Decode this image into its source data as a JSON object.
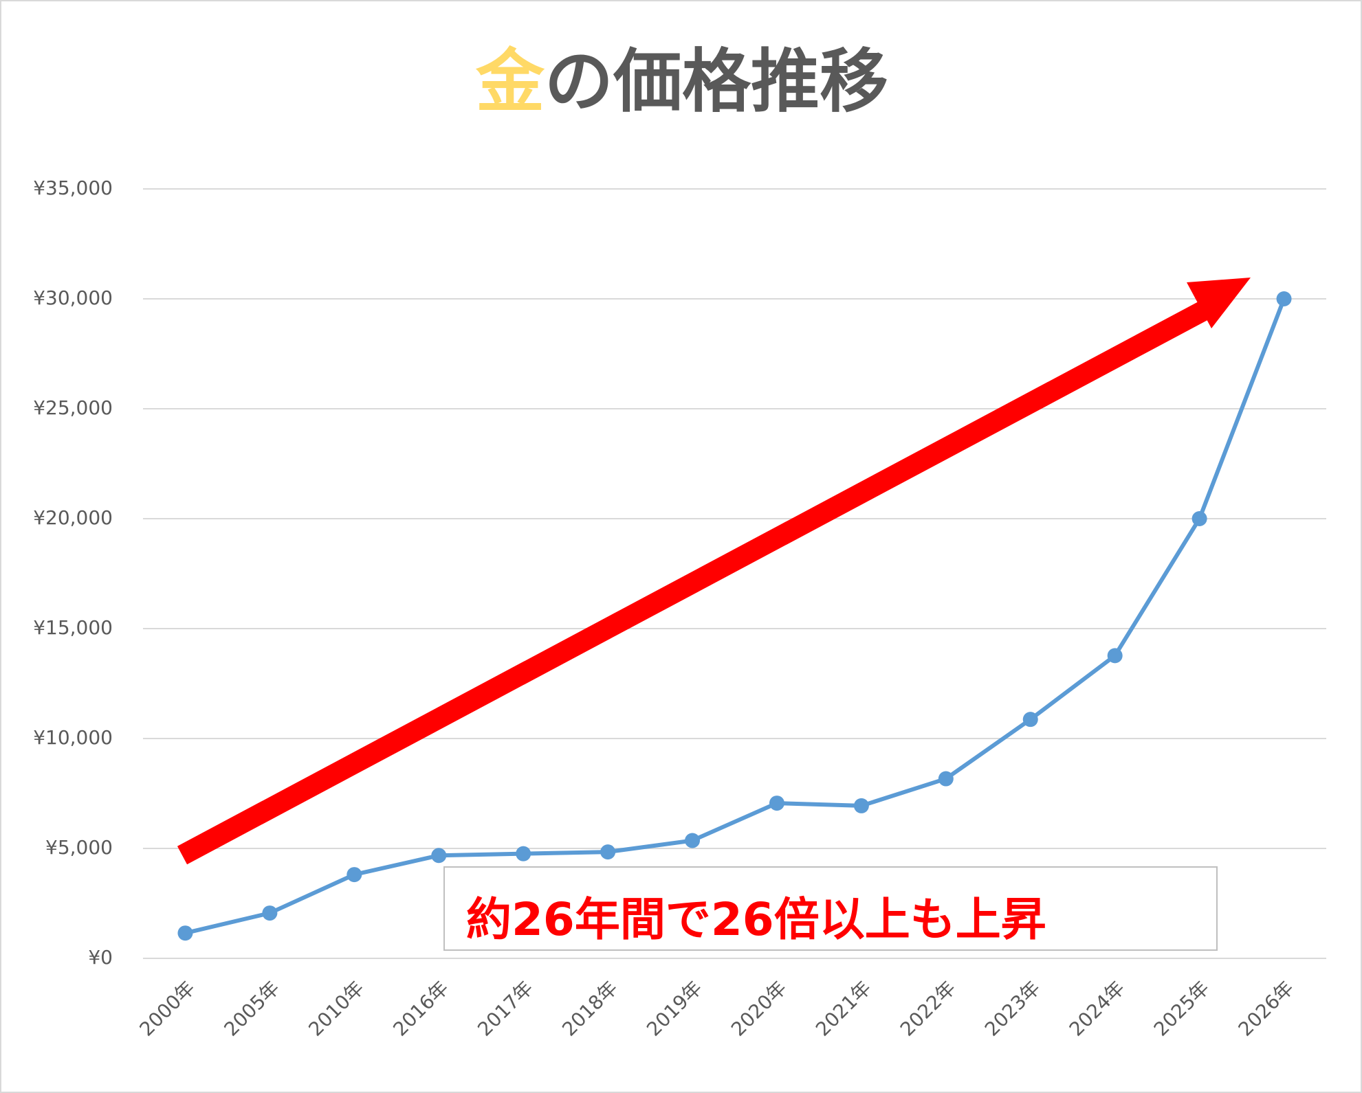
{
  "chart_data": {
    "type": "line",
    "title": [
      "金",
      "の価格推移"
    ],
    "title_colors": [
      "#ffd966",
      "#595959"
    ],
    "categories": [
      "2000年",
      "2005年",
      "2010年",
      "2016年",
      "2017年",
      "2018年",
      "2019年",
      "2020年",
      "2021年",
      "2022年",
      "2023年",
      "2024年",
      "2025年",
      "2026年"
    ],
    "values": [
      1150,
      2060,
      3810,
      4680,
      4760,
      4840,
      5360,
      7060,
      6940,
      8170,
      10870,
      13770,
      20000,
      30000
    ],
    "color": "#5b9bd5",
    "ylim": [
      0,
      35000
    ],
    "yticks": [
      {
        "value": 0,
        "label": "¥0"
      },
      {
        "value": 5000,
        "label": "¥5,000"
      },
      {
        "value": 10000,
        "label": "¥10,000"
      },
      {
        "value": 15000,
        "label": "¥15,000"
      },
      {
        "value": 20000,
        "label": "¥20,000"
      },
      {
        "value": 25000,
        "label": "¥25,000"
      },
      {
        "value": 30000,
        "label": "¥30,000"
      },
      {
        "value": 35000,
        "label": "¥35,000"
      }
    ],
    "grid": true,
    "annotation": "約26年間で26倍以上も上昇"
  }
}
